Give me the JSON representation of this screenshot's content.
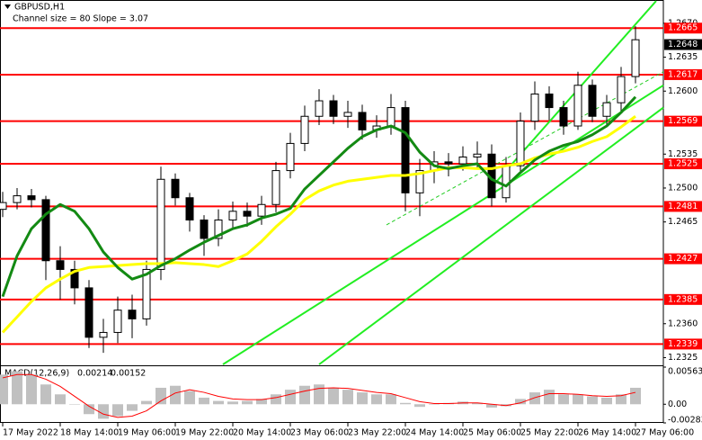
{
  "chart_data": [
    {
      "type": "candlestick",
      "title": "GBPUSD,H1",
      "subtitle": "Channel size = 80 Slope = 3.07",
      "x": [
        0,
        4,
        8,
        12,
        16,
        20,
        24,
        28,
        32,
        36,
        40,
        44,
        48,
        52,
        56,
        60,
        64,
        68,
        72,
        76,
        80,
        84,
        88,
        92,
        96,
        100,
        104,
        108,
        112,
        116,
        120,
        124,
        128,
        132,
        136,
        140,
        144,
        148,
        152,
        156,
        160,
        164,
        168,
        172,
        176
      ],
      "open": [
        1.2478,
        1.2485,
        1.2492,
        1.2488,
        1.2425,
        1.2416,
        1.2397,
        1.2346,
        1.2351,
        1.2374,
        1.2365,
        1.2416,
        1.2509,
        1.249,
        1.2467,
        1.2448,
        1.2467,
        1.2476,
        1.2471,
        1.2483,
        1.2518,
        1.2546,
        1.2574,
        1.259,
        1.2574,
        1.2578,
        1.256,
        1.2564,
        1.2583,
        1.2495,
        1.2518,
        1.2527,
        1.2525,
        1.2532,
        1.2535,
        1.249,
        1.2523,
        1.2569,
        1.2597,
        1.2583,
        1.2564,
        1.2606,
        1.2574,
        1.2588,
        1.2615
      ],
      "high": [
        1.2496,
        1.25,
        1.2499,
        1.2492,
        1.244,
        1.2425,
        1.2405,
        1.2365,
        1.2388,
        1.239,
        1.2425,
        1.2522,
        1.2515,
        1.2495,
        1.2472,
        1.2478,
        1.2486,
        1.2485,
        1.2492,
        1.2527,
        1.2557,
        1.2585,
        1.2602,
        1.2596,
        1.259,
        1.2586,
        1.2575,
        1.2597,
        1.259,
        1.253,
        1.2538,
        1.2536,
        1.2543,
        1.2548,
        1.2545,
        1.2532,
        1.2578,
        1.261,
        1.2605,
        1.259,
        1.262,
        1.2612,
        1.2596,
        1.2625,
        1.2667
      ],
      "low": [
        1.247,
        1.2478,
        1.248,
        1.2405,
        1.2385,
        1.238,
        1.2335,
        1.233,
        1.234,
        1.2345,
        1.2358,
        1.2405,
        1.2482,
        1.2455,
        1.243,
        1.244,
        1.2458,
        1.246,
        1.2462,
        1.2475,
        1.251,
        1.2538,
        1.2565,
        1.2566,
        1.2562,
        1.255,
        1.2552,
        1.2555,
        1.2476,
        1.2471,
        1.2505,
        1.2512,
        1.2518,
        1.252,
        1.2481,
        1.2485,
        1.2515,
        1.256,
        1.257,
        1.2555,
        1.256,
        1.2568,
        1.2565,
        1.2578,
        1.2608
      ],
      "close": [
        1.2485,
        1.2492,
        1.2488,
        1.2425,
        1.2416,
        1.2397,
        1.2346,
        1.2351,
        1.2374,
        1.2365,
        1.2416,
        1.2509,
        1.249,
        1.2467,
        1.2448,
        1.2467,
        1.2476,
        1.2471,
        1.2483,
        1.2518,
        1.2546,
        1.2574,
        1.259,
        1.2574,
        1.2578,
        1.256,
        1.2564,
        1.2583,
        1.2495,
        1.2518,
        1.2527,
        1.2525,
        1.2532,
        1.2535,
        1.249,
        1.2523,
        1.2569,
        1.2597,
        1.2583,
        1.2564,
        1.2606,
        1.2574,
        1.2588,
        1.2615,
        1.2653
      ],
      "up_color": "#ffffff",
      "down_color": "#000000",
      "series": [
        {
          "color": "#ffff00",
          "values": [
            1.2351,
            1.2367,
            1.2383,
            1.2397,
            1.2406,
            1.2414,
            1.2418,
            1.2419,
            1.242,
            1.2421,
            1.2422,
            1.2422,
            1.2423,
            1.2422,
            1.2421,
            1.2419,
            1.2425,
            1.2432,
            1.2445,
            1.246,
            1.2473,
            1.2488,
            1.2497,
            1.2503,
            1.2507,
            1.2509,
            1.2511,
            1.2513,
            1.2513,
            1.2515,
            1.2518,
            1.2521,
            1.2521,
            1.252,
            1.252,
            1.2523,
            1.2525,
            1.2531,
            1.2535,
            1.2538,
            1.2542,
            1.2548,
            1.2553,
            1.2563,
            1.2574
          ]
        },
        {
          "color": "#138a13",
          "values": [
            1.2388,
            1.243,
            1.2458,
            1.2473,
            1.2483,
            1.2476,
            1.2458,
            1.2434,
            1.2418,
            1.2406,
            1.2411,
            1.242,
            1.2427,
            1.2436,
            1.2444,
            1.2451,
            1.2458,
            1.2462,
            1.2469,
            1.2473,
            1.2479,
            1.2499,
            1.2513,
            1.2527,
            1.2541,
            1.2553,
            1.256,
            1.2564,
            1.2557,
            1.2537,
            1.2523,
            1.252,
            1.2523,
            1.2525,
            1.2509,
            1.2502,
            1.2516,
            1.2529,
            1.2538,
            1.2544,
            1.2548,
            1.2555,
            1.2564,
            1.2578,
            1.2594
          ]
        }
      ],
      "channel_lines": [
        {
          "x": [
            135.5,
            181.75
          ],
          "y": [
            1.2499,
            1.2693
          ],
          "color": "#22ee22",
          "dashed": false
        },
        {
          "x": [
            61.25,
            183.75
          ],
          "y": [
            1.2318,
            1.2606
          ],
          "color": "#22ee22",
          "dashed": false
        },
        {
          "x": [
            88,
            183.75
          ],
          "y": [
            1.2318,
            1.2583
          ],
          "color": "#22ee22",
          "dashed": false
        },
        {
          "x": [
            106.75,
            183.75
          ],
          "y": [
            1.2462,
            1.262
          ],
          "color": "#22cc22",
          "dashed": true
        }
      ],
      "levels": [
        1.2665,
        1.2617,
        1.2569,
        1.2525,
        1.2481,
        1.2427,
        1.2385,
        1.2339
      ],
      "level_color": "#ff0000",
      "current_price": 1.2648,
      "xlim": [
        -0.75,
        183.75
      ],
      "xticks": [
        {
          "value": 0,
          "label": "17 May 2022"
        },
        {
          "value": 16,
          "label": "18 May 14:00"
        },
        {
          "value": 32,
          "label": "19 May 06:00"
        },
        {
          "value": 48,
          "label": "19 May 22:00"
        },
        {
          "value": 64,
          "label": "20 May 14:00"
        },
        {
          "value": 80,
          "label": "23 May 06:00"
        },
        {
          "value": 96,
          "label": "23 May 22:00"
        },
        {
          "value": 112,
          "label": "24 May 14:00"
        },
        {
          "value": 128,
          "label": "25 May 06:00"
        },
        {
          "value": 144,
          "label": "25 May 22:00"
        },
        {
          "value": 160,
          "label": "26 May 14:00"
        },
        {
          "value": 176,
          "label": "27 May 06:00"
        }
      ],
      "ylim": [
        1.2318,
        1.2694
      ],
      "yticks": [
        {
          "value": 1.267,
          "label": "1.2670"
        },
        1.2635,
        {
          "value": 1.26,
          "label": "1.2600"
        },
        1.2535,
        {
          "value": 1.25,
          "label": "1.2500"
        },
        1.2465,
        {
          "value": 1.236,
          "label": "1.2360"
        },
        1.2325
      ]
    },
    {
      "type": "macd",
      "title": "MACD(12,26,9)",
      "main_value": 0.00214,
      "signal_value": 0.00152,
      "x": [
        0,
        4,
        8,
        12,
        16,
        20,
        24,
        28,
        32,
        36,
        40,
        44,
        48,
        52,
        56,
        60,
        64,
        68,
        72,
        76,
        80,
        84,
        88,
        92,
        96,
        100,
        104,
        108,
        112,
        116,
        120,
        124,
        128,
        132,
        136,
        140,
        144,
        148,
        152,
        156,
        160,
        164,
        168,
        172,
        176
      ],
      "values": [
        0.0045,
        0.005,
        0.0045,
        0.003,
        0.0015,
        0.0,
        -0.0015,
        -0.0022,
        -0.0018,
        -0.001,
        0.0005,
        0.0025,
        0.0028,
        0.002,
        0.001,
        0.0005,
        0.0004,
        0.0005,
        0.0008,
        0.0015,
        0.0022,
        0.0028,
        0.003,
        0.0025,
        0.0022,
        0.0018,
        0.0015,
        0.0015,
        0.0002,
        -0.0004,
        0.0,
        0.0002,
        0.0004,
        0.0002,
        -0.0005,
        -0.0003,
        0.0008,
        0.0018,
        0.0022,
        0.0015,
        0.0015,
        0.0012,
        0.001,
        0.0015,
        0.0025
      ],
      "color": "#c0c0c0",
      "signal": [
        0.004,
        0.0045,
        0.0045,
        0.0038,
        0.0027,
        0.0012,
        -0.0003,
        -0.0015,
        -0.002,
        -0.0018,
        -0.001,
        0.0005,
        0.0017,
        0.0022,
        0.0018,
        0.0012,
        0.0008,
        0.0007,
        0.0007,
        0.001,
        0.0015,
        0.002,
        0.0024,
        0.0025,
        0.0024,
        0.0021,
        0.0018,
        0.0016,
        0.001,
        0.0004,
        0.0001,
        0.0001,
        0.0002,
        0.0002,
        0.0,
        -0.0002,
        0.0002,
        0.001,
        0.0016,
        0.0016,
        0.0015,
        0.0013,
        0.0012,
        0.0013,
        0.0018
      ],
      "signal_color": "#ff0000",
      "ylim": [
        -0.00283,
        0.00563
      ],
      "yticks": [
        0.00563,
        {
          "value": 0,
          "label": "0.00"
        },
        -0.00283
      ]
    }
  ]
}
